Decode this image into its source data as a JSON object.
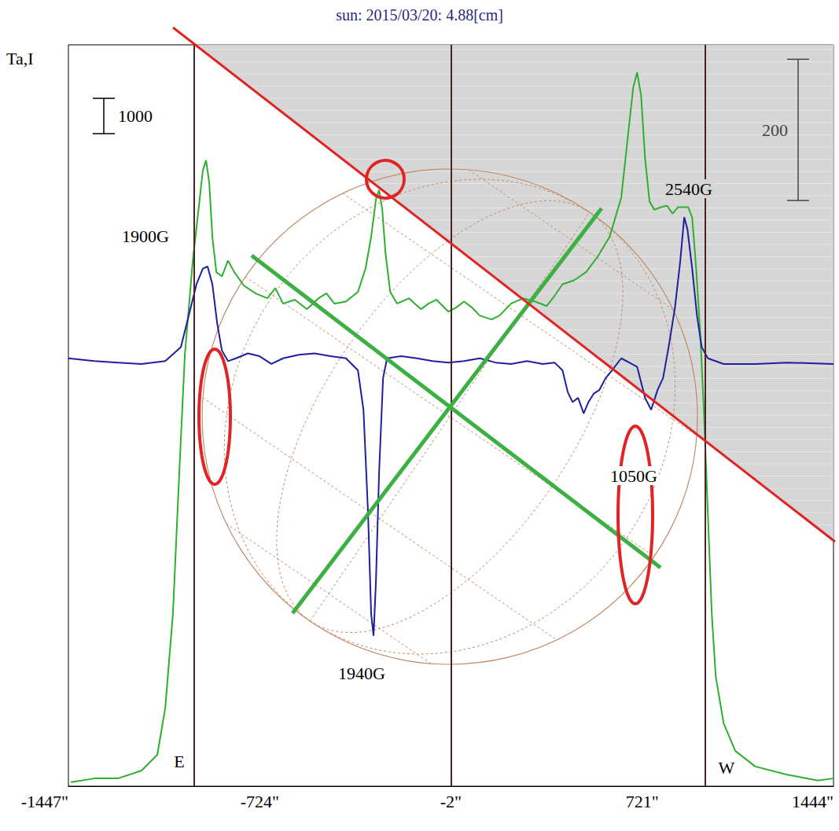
{
  "chart_data": {
    "type": "line",
    "title": "sun: 2015/03/20: 4.88[cm]",
    "ylabel": "Ta,I",
    "xlim": [
      -1447,
      1444
    ],
    "xticks": [
      {
        "value": -1447,
        "label": "-1447\""
      },
      {
        "value": -724,
        "label": "-724\""
      },
      {
        "value": -2,
        "label": "-2\""
      },
      {
        "value": 721,
        "label": "721\""
      },
      {
        "value": 1444,
        "label": "1444\""
      }
    ],
    "ylim": [
      0,
      21000
    ],
    "y2lim": [
      -600,
      450
    ],
    "tick_labels": "x",
    "grid": false,
    "vlines": [
      -972,
      -2,
      959
    ],
    "scale_bars": [
      {
        "value": 1000,
        "axis": "y"
      },
      {
        "value": 200,
        "axis": "y2"
      }
    ],
    "annotations": [
      "1900G",
      "1940G",
      "1050G",
      "2540G",
      "E",
      "W"
    ],
    "series": [
      {
        "color": "#2fae2f",
        "axis": "y",
        "x": [
          -1438,
          -1349,
          -1260,
          -1171,
          -1111,
          -1081,
          -1052,
          -1028,
          -1007,
          -977,
          -957,
          -939,
          -927,
          -915,
          -903,
          -888,
          -867,
          -844,
          -820,
          -784,
          -740,
          -695,
          -665,
          -636,
          -591,
          -546,
          -502,
          -472,
          -442,
          -398,
          -353,
          -324,
          -303,
          -285,
          -273,
          -261,
          -249,
          -231,
          -205,
          -160,
          -115,
          -86,
          -56,
          -11,
          18,
          48,
          78,
          107,
          152,
          182,
          226,
          271,
          316,
          360,
          390,
          420,
          464,
          509,
          553,
          598,
          642,
          666,
          687,
          702,
          717,
          732,
          749,
          767,
          791,
          815,
          836,
          856,
          874,
          895,
          910,
          925,
          940,
          954,
          969,
          984,
          999,
          1029,
          1073,
          1148,
          1267,
          1385,
          1444
        ],
        "values": [
          110,
          220,
          220,
          440,
          890,
          2220,
          4890,
          8890,
          12220,
          14890,
          16220,
          17440,
          17730,
          17110,
          15560,
          14560,
          14440,
          14890,
          14560,
          14180,
          13960,
          13820,
          14110,
          13670,
          13780,
          13510,
          13820,
          13960,
          13670,
          13730,
          14000,
          14670,
          15560,
          16620,
          16890,
          16330,
          15110,
          14000,
          13670,
          13820,
          13510,
          13670,
          13780,
          13440,
          13560,
          13730,
          13560,
          13330,
          13220,
          13330,
          13670,
          13820,
          13730,
          13600,
          13890,
          14220,
          14330,
          14560,
          15000,
          15560,
          16670,
          18330,
          19780,
          20220,
          19560,
          17780,
          16560,
          16330,
          16400,
          16440,
          16220,
          16400,
          16400,
          16400,
          16110,
          14670,
          12890,
          10670,
          7780,
          4890,
          3110,
          1780,
          1000,
          560,
          330,
          160,
          220
        ]
      },
      {
        "color": "#1f1f9f",
        "axis": "y2",
        "x": [
          -1447,
          -1349,
          -1260,
          -1171,
          -1081,
          -1022,
          -992,
          -963,
          -939,
          -921,
          -903,
          -885,
          -867,
          -844,
          -814,
          -769,
          -725,
          -680,
          -636,
          -576,
          -517,
          -457,
          -398,
          -353,
          -332,
          -315,
          -303,
          -294,
          -285,
          -273,
          -258,
          -243,
          -190,
          -130,
          -71,
          -11,
          48,
          107,
          167,
          226,
          286,
          345,
          390,
          420,
          440,
          458,
          479,
          500,
          518,
          538,
          559,
          583,
          607,
          642,
          672,
          702,
          732,
          755,
          779,
          800,
          821,
          845,
          865,
          880,
          892,
          910,
          928,
          946,
          969,
          1029,
          1148,
          1267,
          1444
        ],
        "values": [
          6,
          2,
          0,
          -2,
          2,
          22,
          67,
          111,
          133,
          136,
          111,
          56,
          17,
          2,
          6,
          13,
          9,
          -2,
          6,
          11,
          13,
          9,
          6,
          -11,
          -67,
          -211,
          -356,
          -387,
          -311,
          -156,
          -22,
          6,
          9,
          6,
          2,
          0,
          2,
          6,
          0,
          -2,
          2,
          -2,
          0,
          -11,
          -42,
          -56,
          -50,
          -72,
          -56,
          -44,
          -39,
          -22,
          -11,
          6,
          0,
          -6,
          -50,
          -67,
          -39,
          -22,
          22,
          78,
          144,
          206,
          189,
          133,
          67,
          22,
          6,
          -2,
          -2,
          0,
          -2
        ]
      }
    ]
  }
}
